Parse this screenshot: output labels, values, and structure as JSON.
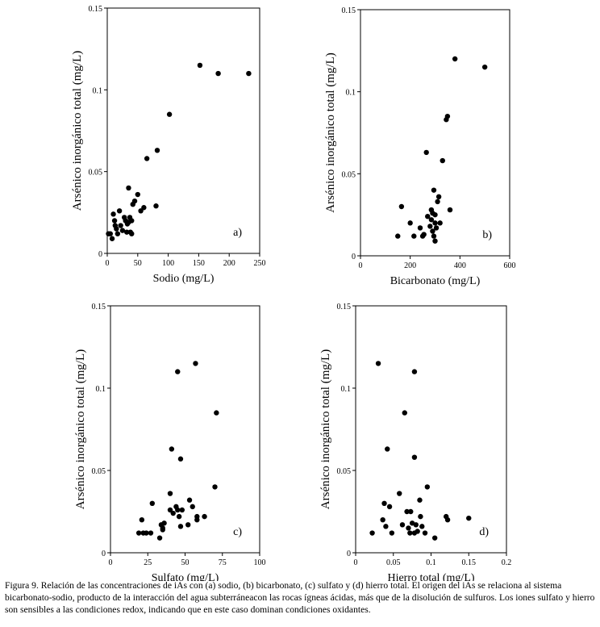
{
  "chart_data": [
    {
      "type": "scatter",
      "panel": "a)",
      "xlabel": "Sodio (mg/L)",
      "ylabel": "Arsénico inorgánico total (mg/L)",
      "xlim": [
        0,
        250
      ],
      "ylim": [
        0,
        0.15
      ],
      "xticks": [
        0,
        50,
        100,
        150,
        200,
        250
      ],
      "xtick_labels": [
        "0",
        "50",
        "100",
        "150",
        "200",
        "250"
      ],
      "yticks": [
        0,
        0.05,
        0.1,
        0.15
      ],
      "ytick_labels": [
        "0",
        "0.05",
        "0.1",
        "0.15"
      ],
      "x": [
        2,
        5,
        8,
        10,
        12,
        13,
        15,
        17,
        20,
        22,
        25,
        28,
        30,
        32,
        33,
        35,
        35,
        37,
        38,
        40,
        40,
        42,
        45,
        50,
        55,
        60,
        65,
        80,
        82,
        102,
        152,
        182,
        232
      ],
      "y": [
        0.012,
        0.012,
        0.009,
        0.024,
        0.02,
        0.017,
        0.015,
        0.012,
        0.026,
        0.017,
        0.014,
        0.022,
        0.02,
        0.013,
        0.018,
        0.019,
        0.04,
        0.022,
        0.013,
        0.02,
        0.012,
        0.03,
        0.032,
        0.036,
        0.026,
        0.028,
        0.058,
        0.029,
        0.063,
        0.085,
        0.115,
        0.11,
        0.11
      ]
    },
    {
      "type": "scatter",
      "panel": "b)",
      "xlabel": "Bicarbonato (mg/L)",
      "ylabel": "Arsénico inorgánico total (mg/L)",
      "xlim": [
        0,
        600
      ],
      "ylim": [
        0,
        0.15
      ],
      "xticks": [
        0,
        200,
        400,
        600
      ],
      "xtick_labels": [
        "0",
        "200",
        "400",
        "600"
      ],
      "yticks": [
        0,
        0.05,
        0.1,
        0.15
      ],
      "ytick_labels": [
        "0",
        "0.05",
        "0.1",
        "0.15"
      ],
      "x": [
        150,
        165,
        200,
        215,
        240,
        250,
        255,
        265,
        270,
        280,
        285,
        285,
        290,
        290,
        295,
        295,
        300,
        300,
        300,
        305,
        310,
        315,
        320,
        330,
        345,
        350,
        360,
        380,
        500
      ],
      "y": [
        0.012,
        0.03,
        0.02,
        0.012,
        0.017,
        0.012,
        0.013,
        0.063,
        0.024,
        0.018,
        0.022,
        0.028,
        0.026,
        0.015,
        0.012,
        0.04,
        0.009,
        0.02,
        0.025,
        0.017,
        0.033,
        0.036,
        0.02,
        0.058,
        0.083,
        0.085,
        0.028,
        0.12,
        0.115
      ]
    },
    {
      "type": "scatter",
      "panel": "c)",
      "xlabel": "Sulfato (mg/L)",
      "ylabel": "Arsénico inorgánico total (mg/L)",
      "xlim": [
        0,
        100
      ],
      "ylim": [
        0,
        0.15
      ],
      "xticks": [
        0,
        25,
        50,
        75,
        100
      ],
      "xtick_labels": [
        "0",
        "25",
        "50",
        "75",
        "100"
      ],
      "yticks": [
        0,
        0.05,
        0.1,
        0.15
      ],
      "ytick_labels": [
        "0",
        "0.05",
        "0.1",
        "0.15"
      ],
      "x": [
        19,
        21,
        22,
        24,
        27,
        28,
        33,
        34,
        35,
        35,
        36,
        40,
        40,
        41,
        42,
        44,
        45,
        45,
        46,
        47,
        47,
        48,
        52,
        53,
        55,
        57,
        58,
        58,
        63,
        70,
        71
      ],
      "y": [
        0.012,
        0.02,
        0.012,
        0.012,
        0.012,
        0.03,
        0.009,
        0.017,
        0.014,
        0.015,
        0.018,
        0.026,
        0.036,
        0.063,
        0.024,
        0.028,
        0.11,
        0.026,
        0.022,
        0.016,
        0.057,
        0.026,
        0.017,
        0.032,
        0.028,
        0.115,
        0.02,
        0.022,
        0.022,
        0.04,
        0.085
      ]
    },
    {
      "type": "scatter",
      "panel": "d)",
      "xlabel": "Hierro total (mg/L)",
      "ylabel": "Arsénico inorgánico total (mg/L)",
      "xlim": [
        0,
        0.2
      ],
      "ylim": [
        0,
        0.15
      ],
      "xticks": [
        0,
        0.05,
        0.1,
        0.15,
        0.2
      ],
      "xtick_labels": [
        "0",
        "0.05",
        "0.1",
        "0.15",
        "0.2"
      ],
      "yticks": [
        0,
        0.05,
        0.1,
        0.15
      ],
      "ytick_labels": [
        "0",
        "0.05",
        "0.1",
        "0.15"
      ],
      "x": [
        0.022,
        0.03,
        0.036,
        0.038,
        0.04,
        0.042,
        0.045,
        0.048,
        0.058,
        0.062,
        0.065,
        0.068,
        0.07,
        0.072,
        0.073,
        0.075,
        0.078,
        0.078,
        0.078,
        0.08,
        0.082,
        0.085,
        0.086,
        0.088,
        0.092,
        0.095,
        0.105,
        0.12,
        0.122,
        0.15
      ],
      "y": [
        0.012,
        0.115,
        0.02,
        0.03,
        0.016,
        0.063,
        0.028,
        0.012,
        0.036,
        0.017,
        0.085,
        0.025,
        0.015,
        0.012,
        0.025,
        0.018,
        0.11,
        0.058,
        0.012,
        0.017,
        0.013,
        0.032,
        0.022,
        0.016,
        0.012,
        0.04,
        0.009,
        0.022,
        0.02,
        0.021
      ]
    }
  ],
  "caption": "Figura 9. Relación de las concentraciones de iAs con (a) sodio, (b) bicarbonato, (c) sulfato y (d) hierro total. El origen del iAs se relaciona al sistema bicarbonato-sodio, producto de la interacción del agua subterráneacon las rocas ígneas ácidas, más que de la disolución de sulfuros. Los iones sulfato y hierro son sensibles a las condiciones redox, indicando que en este caso dominan condiciones oxidantes."
}
